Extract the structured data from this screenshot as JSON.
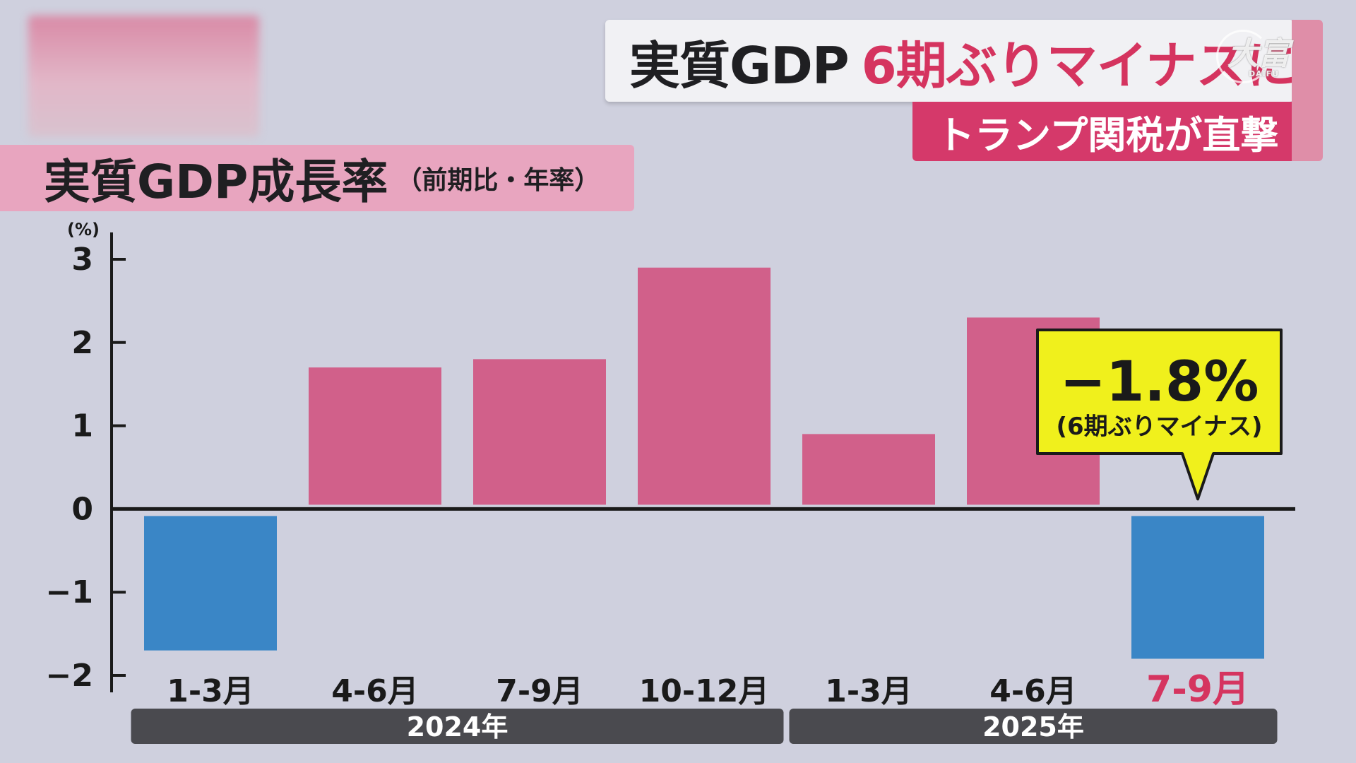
{
  "headline": {
    "part1": "実質GDP",
    "part2": "6期ぶりマイナスに",
    "subtitle": "トランプ関税が直撃"
  },
  "watermark": {
    "text": "大富",
    "sub": "DAIFU"
  },
  "chart_data": {
    "type": "bar",
    "title": "実質GDP成長率",
    "subtitle": "（前期比・年率）",
    "ylabel": "(%)",
    "ylim": [
      -2,
      3
    ],
    "yticks": [
      "3",
      "2",
      "1",
      "0",
      "−1",
      "−2"
    ],
    "grid": false,
    "categories": [
      "1-3月",
      "4-6月",
      "7-9月",
      "10-12月",
      "1-3月",
      "4-6月",
      "7-9月"
    ],
    "values": [
      -1.7,
      1.7,
      1.8,
      2.9,
      0.9,
      2.3,
      -1.8
    ],
    "year_groups": [
      {
        "label": "2024年",
        "count": 4
      },
      {
        "label": "2025年",
        "count": 3
      }
    ],
    "colors": {
      "positive": "#d1608a",
      "negative": "#3a86c6",
      "highlight_label": "#d5345f"
    },
    "highlight_index": 6,
    "annotation": {
      "value_text": "−1.8%",
      "note": "(6期ぶりマイナス)",
      "target_index": 6
    }
  }
}
